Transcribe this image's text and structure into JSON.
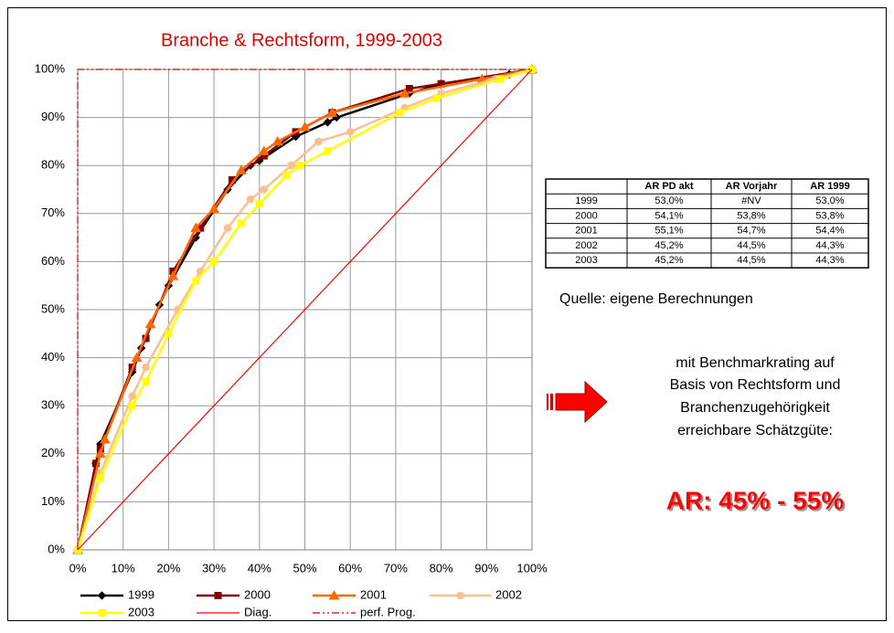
{
  "chart_data": {
    "type": "line",
    "title": "Branche & Rechtsform, 1999-2003",
    "xlim": [
      0,
      100
    ],
    "ylim": [
      0,
      100
    ],
    "xticks": [
      {
        "value": 0,
        "label": "0%"
      },
      {
        "value": 10,
        "label": "10%"
      },
      {
        "value": 20,
        "label": "20%"
      },
      {
        "value": 30,
        "label": "30%"
      },
      {
        "value": 40,
        "label": "40%"
      },
      {
        "value": 50,
        "label": "50%"
      },
      {
        "value": 60,
        "label": "60%"
      },
      {
        "value": 70,
        "label": "70%"
      },
      {
        "value": 80,
        "label": "80%"
      },
      {
        "value": 90,
        "label": "90%"
      },
      {
        "value": 100,
        "label": "100%"
      }
    ],
    "yticks": [
      {
        "value": 0,
        "label": "0%"
      },
      {
        "value": 10,
        "label": "10%"
      },
      {
        "value": 20,
        "label": "20%"
      },
      {
        "value": 30,
        "label": "30%"
      },
      {
        "value": 40,
        "label": "40%"
      },
      {
        "value": 50,
        "label": "50%"
      },
      {
        "value": 60,
        "label": "60%"
      },
      {
        "value": 70,
        "label": "70%"
      },
      {
        "value": 80,
        "label": "80%"
      },
      {
        "value": 90,
        "label": "90%"
      },
      {
        "value": 100,
        "label": "100%"
      }
    ],
    "grid": true,
    "series": [
      {
        "name": "1999",
        "color": "#000000",
        "marker": "diamond",
        "x": [
          0,
          4,
          5,
          12,
          14,
          18,
          20,
          26,
          33,
          38,
          40,
          48,
          55,
          57,
          73,
          80,
          95,
          100
        ],
        "values": [
          0,
          18,
          22,
          37,
          42,
          51,
          55,
          65,
          75,
          80,
          81,
          86,
          89,
          90,
          95,
          97,
          99,
          100
        ]
      },
      {
        "name": "2000",
        "color": "#800000",
        "marker": "square",
        "x": [
          0,
          4,
          5,
          12,
          15,
          21,
          27,
          34,
          41,
          48,
          56,
          73,
          80,
          100
        ],
        "values": [
          0,
          18,
          21,
          38,
          44,
          58,
          67,
          77,
          82,
          87,
          91,
          96,
          97,
          100
        ]
      },
      {
        "name": "2001",
        "color": "#ff6600",
        "marker": "triangle",
        "x": [
          0,
          5,
          6,
          13,
          16,
          21,
          26,
          30,
          36,
          41,
          44,
          50,
          56,
          72,
          89,
          100
        ],
        "values": [
          0,
          20,
          23,
          40,
          47,
          57,
          67,
          71,
          79,
          83,
          85,
          88,
          91,
          95,
          98,
          100
        ]
      },
      {
        "name": "2002",
        "color": "#fac090",
        "marker": "circle",
        "x": [
          0,
          5,
          12,
          15,
          22,
          27,
          33,
          38,
          41,
          47,
          53,
          60,
          72,
          80,
          92,
          100
        ],
        "values": [
          0,
          16,
          32,
          38,
          50,
          58,
          67,
          73,
          75,
          80,
          85,
          87,
          92,
          95,
          98,
          100
        ]
      },
      {
        "name": "2003",
        "color": "#ffff00",
        "marker": "square",
        "x": [
          0,
          5,
          12,
          15,
          20,
          26,
          30,
          36,
          40,
          46,
          49,
          55,
          71,
          79,
          93,
          100
        ],
        "values": [
          0,
          15,
          30,
          35,
          45,
          56,
          60,
          68,
          72,
          78,
          80,
          83,
          91,
          94,
          98,
          100
        ]
      },
      {
        "name": "Diag.",
        "color": "#ff0000",
        "x": [
          0,
          100
        ],
        "values": [
          0,
          100
        ]
      },
      {
        "name": "perf. Prog.",
        "color": "#cc0000",
        "dash": "dashdot",
        "x": [
          0,
          0,
          100
        ],
        "values": [
          0,
          100,
          100
        ]
      }
    ]
  },
  "table": {
    "header": [
      "AR PD akt",
      "AR Vorjahr",
      "AR 1999"
    ],
    "rows": [
      [
        "1999",
        "53,0%",
        "#NV",
        "53,0%"
      ],
      [
        "2000",
        "54,1%",
        "53,8%",
        "53,8%"
      ],
      [
        "2001",
        "55,1%",
        "54,7%",
        "54,4%"
      ],
      [
        "2002",
        "45,2%",
        "44,5%",
        "44,3%"
      ],
      [
        "2003",
        "45,2%",
        "44,5%",
        "44,3%"
      ]
    ]
  },
  "source": "Quelle: eigene Berechnungen",
  "note": [
    "mit Benchmarkrating auf",
    "Basis von Rechtsform und",
    "Branchenzugehörigkeit",
    "erreichbare Schätzgüte:"
  ],
  "result": "AR: 45% - 55%"
}
